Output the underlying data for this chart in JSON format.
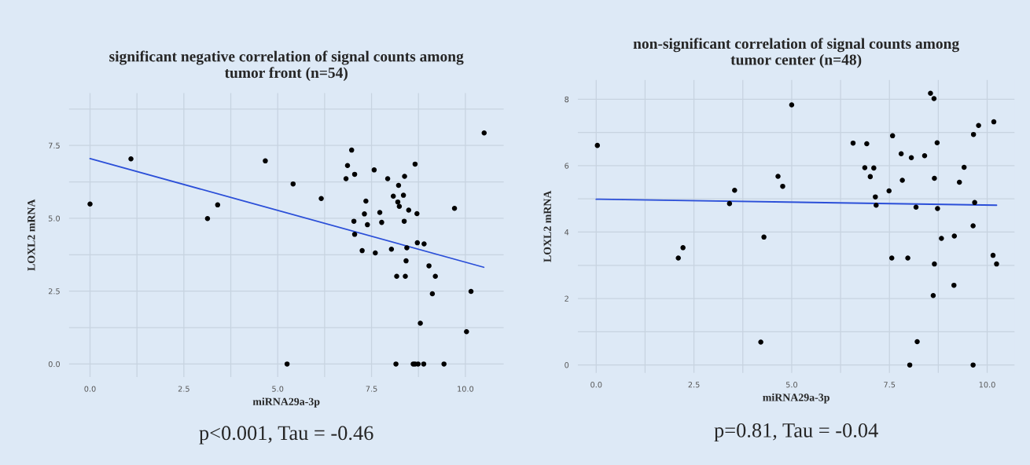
{
  "chart_data": [
    {
      "type": "scatter",
      "title": "significant negative correlation of signal counts among\ntumor front (n=54)",
      "xlabel": "miRNA29a-3p",
      "ylabel": "LOXL2 mRNA",
      "annotations": [
        "p<0.001, Tau = -0.46"
      ],
      "grid": true,
      "xlim": [
        -0.56,
        11.02
      ],
      "ylim": [
        -0.45,
        9.3
      ],
      "xticks": [
        {
          "value": 0,
          "label": "0.0"
        },
        {
          "value": 1.25,
          "label": null
        },
        {
          "value": 2.5,
          "label": "2.5"
        },
        {
          "value": 3.75,
          "label": null
        },
        {
          "value": 5,
          "label": "5.0"
        },
        {
          "value": 6.25,
          "label": null
        },
        {
          "value": 7.5,
          "label": "7.5"
        },
        {
          "value": 8.75,
          "label": null
        },
        {
          "value": 10,
          "label": "10.0"
        }
      ],
      "yticks": [
        {
          "value": 0,
          "label": "0.0"
        },
        {
          "value": 1.25,
          "label": null
        },
        {
          "value": 2.5,
          "label": "2.5"
        },
        {
          "value": 3.75,
          "label": null
        },
        {
          "value": 5,
          "label": "5.0"
        },
        {
          "value": 6.25,
          "label": null
        },
        {
          "value": 7.5,
          "label": "7.5"
        },
        {
          "value": 8.75,
          "label": null
        }
      ],
      "series": [
        {
          "marker": "circle",
          "color": "#000000",
          "x": [
            0,
            1.09,
            3.13,
            3.4,
            10.5,
            4.67,
            6.97,
            5.41,
            6.16,
            6.86,
            7.05,
            6.82,
            7.57,
            7.93,
            8.38,
            8.66,
            8.22,
            8.08,
            8.35,
            8.2,
            8.24,
            7.35,
            7.31,
            7.72,
            8.49,
            8.71,
            7.03,
            7.39,
            7.77,
            8.37,
            7.05,
            8.72,
            8.9,
            8.44,
            8.03,
            7.25,
            7.6,
            8.42,
            9.03,
            8.17,
            8.4,
            9.2,
            9.71,
            9.12,
            10.15,
            8.8,
            10.03,
            5.25,
            8.15,
            8.61,
            8.66,
            8.74,
            8.89,
            9.43
          ],
          "values": [
            5.49,
            7.04,
            4.99,
            5.46,
            7.93,
            6.97,
            7.34,
            6.18,
            5.68,
            6.81,
            6.51,
            6.36,
            6.66,
            6.36,
            6.44,
            6.86,
            6.13,
            5.76,
            5.79,
            5.56,
            5.41,
            5.59,
            5.15,
            5.2,
            5.28,
            5.16,
            4.9,
            4.78,
            4.86,
            4.9,
            4.45,
            4.16,
            4.12,
            3.99,
            3.94,
            3.89,
            3.81,
            3.54,
            3.37,
            3.01,
            3.01,
            3.01,
            5.34,
            2.41,
            2.49,
            1.4,
            1.11,
            0,
            0,
            0,
            0,
            0,
            0,
            0
          ]
        },
        {
          "type": "line",
          "color": "#2b4fd8",
          "x": [
            0,
            10.49
          ],
          "values": [
            7.05,
            3.32
          ]
        }
      ]
    },
    {
      "type": "scatter",
      "title": "non-significant correlation of signal counts among\ntumor center (n=48)",
      "xlabel": "miRNA29a-3p",
      "ylabel": "LOXL2 mRNA",
      "annotations": [
        "p=0.81, Tau = -0.04"
      ],
      "grid": true,
      "xlim": [
        -0.47,
        10.7
      ],
      "ylim": [
        -0.24,
        8.58
      ],
      "xticks": [
        {
          "value": 0,
          "label": "0.0"
        },
        {
          "value": 1.25,
          "label": null
        },
        {
          "value": 2.5,
          "label": "2.5"
        },
        {
          "value": 3.75,
          "label": null
        },
        {
          "value": 5,
          "label": "5.0"
        },
        {
          "value": 6.25,
          "label": null
        },
        {
          "value": 7.5,
          "label": "7.5"
        },
        {
          "value": 8.75,
          "label": null
        },
        {
          "value": 10,
          "label": "10.0"
        }
      ],
      "yticks": [
        0,
        {
          "value": 1,
          "label": null
        },
        2,
        {
          "value": 3,
          "label": null
        },
        4,
        {
          "value": 5,
          "label": null
        },
        6,
        {
          "value": 7,
          "label": null
        },
        8
      ],
      "series": [
        {
          "marker": "circle",
          "color": "#000000",
          "x": [
            0.03,
            2.1,
            2.22,
            3.41,
            3.54,
            4.21,
            4.29,
            4.65,
            4.77,
            5.0,
            6.57,
            6.92,
            6.87,
            7.1,
            7.01,
            7.14,
            7.16,
            7.49,
            7.58,
            7.8,
            8.06,
            8.4,
            7.83,
            8.18,
            8.55,
            8.64,
            8.72,
            8.65,
            8.73,
            8.83,
            9.16,
            9.41,
            9.29,
            9.65,
            9.78,
            10.17,
            9.68,
            9.64,
            7.56,
            7.97,
            8.65,
            10.15,
            10.24,
            9.15,
            8.62,
            8.21,
            8.02,
            9.64
          ],
          "values": [
            6.61,
            3.22,
            3.53,
            4.86,
            5.26,
            0.69,
            3.85,
            5.68,
            5.38,
            7.83,
            6.68,
            6.66,
            5.94,
            5.93,
            5.67,
            5.06,
            4.81,
            5.24,
            6.9,
            6.36,
            6.24,
            6.3,
            5.56,
            4.75,
            8.18,
            8.02,
            6.69,
            5.62,
            4.71,
            3.81,
            3.88,
            5.95,
            5.5,
            6.94,
            7.21,
            7.32,
            4.89,
            4.19,
            3.22,
            3.22,
            3.04,
            3.3,
            3.04,
            2.4,
            2.09,
            0.7,
            0,
            0
          ]
        },
        {
          "type": "line",
          "color": "#2b4fd8",
          "x": [
            0,
            10.24
          ],
          "values": [
            4.99,
            4.81
          ]
        }
      ]
    }
  ]
}
